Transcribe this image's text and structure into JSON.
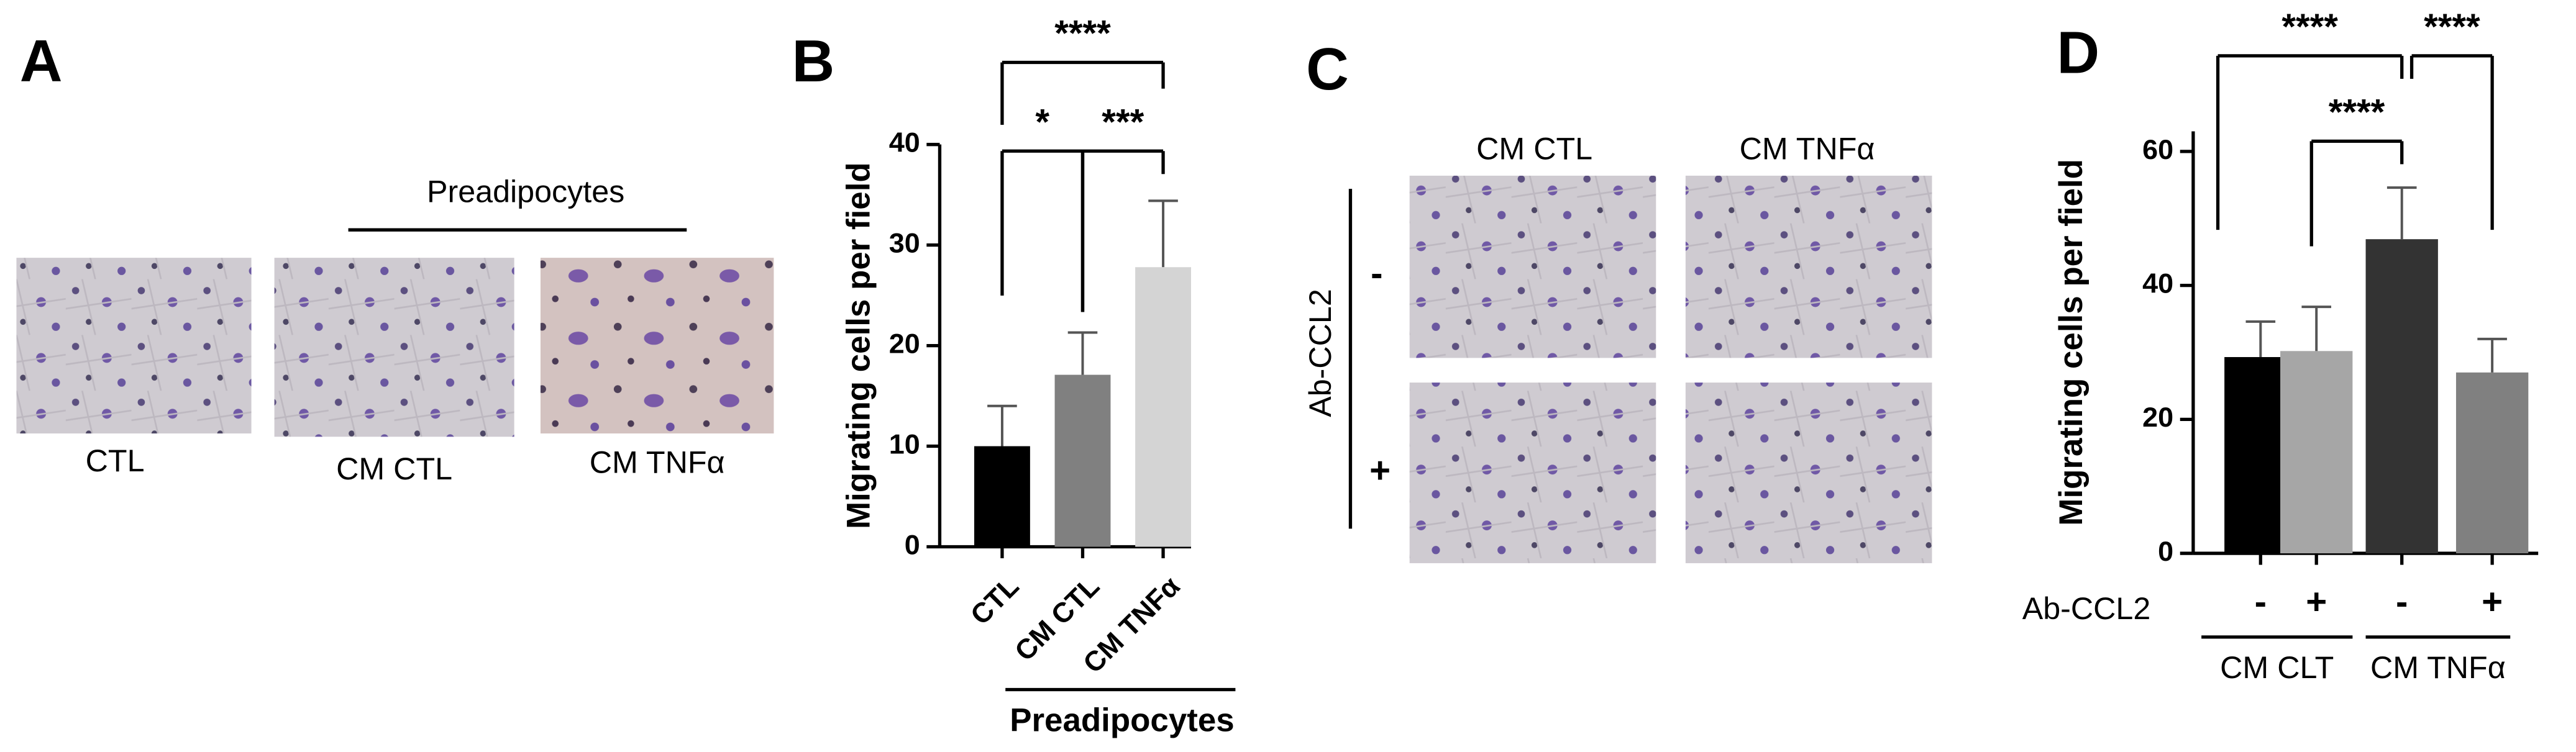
{
  "panel_labels": [
    "A",
    "B",
    "C",
    "D"
  ],
  "panel_a": {
    "group_label": "Preadipocytes",
    "captions": [
      "CTL",
      "CM CTL",
      "CM TNFα"
    ]
  },
  "panel_c": {
    "columns": [
      "CM CTL",
      "CM TNFα"
    ],
    "row_title": "Ab-CCL2",
    "rows": [
      "-",
      "+"
    ]
  },
  "chart_data": [
    {
      "type": "bar",
      "y_label": "Migrating cells per field",
      "categories": [
        "CTL",
        "CM CTL",
        "CM TNFα"
      ],
      "values": [
        10,
        17.1,
        27.8
      ],
      "errors": [
        4,
        4.2,
        6.6
      ],
      "colors": [
        "#000000",
        "#808080",
        "#d4d4d4"
      ],
      "ylim": [
        0,
        40
      ],
      "yticks": [
        0,
        10,
        20,
        30,
        40
      ],
      "group_label": "Preadipocytes",
      "annotations": [
        "*",
        "***",
        "****"
      ]
    },
    {
      "type": "bar",
      "y_label": "Migrating cells per field",
      "row_title": "Ab-CCL2",
      "categories": [
        "-",
        "+",
        "-",
        "+"
      ],
      "groups": [
        "CM CLT",
        "CM TNFα"
      ],
      "values": [
        29.3,
        30.2,
        46.9,
        27.0
      ],
      "errors": [
        5.3,
        6.6,
        7.7,
        5.0
      ],
      "colors": [
        "#000000",
        "#a6a6a6",
        "#333333",
        "#808080"
      ],
      "ylim": [
        0,
        63
      ],
      "yticks": [
        0,
        20,
        40,
        60
      ],
      "annotations": [
        "****",
        "****",
        "****"
      ]
    }
  ]
}
